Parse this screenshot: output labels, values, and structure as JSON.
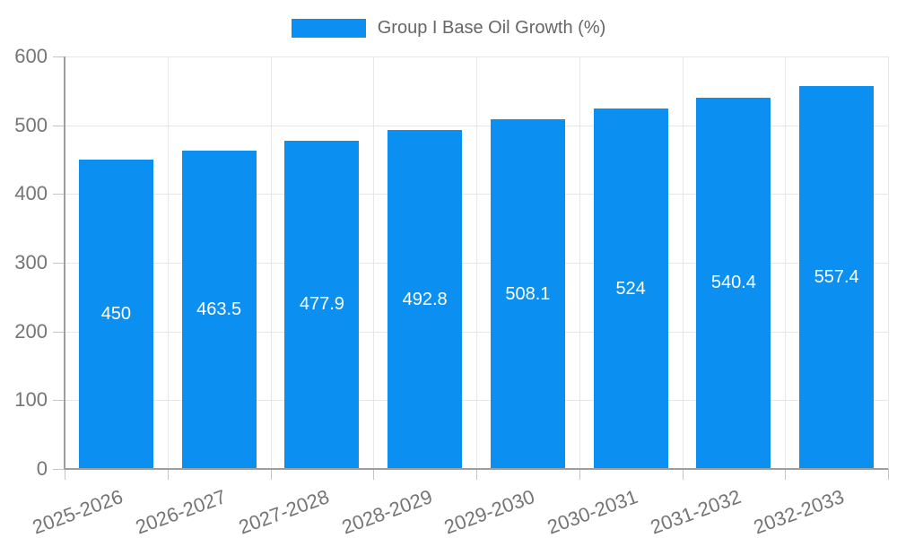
{
  "chart_data": {
    "type": "bar",
    "title": "",
    "categories": [
      "2025-2026",
      "2026-2027",
      "2027-2028",
      "2028-2029",
      "2029-2030",
      "2030-2031",
      "2031-2032",
      "2032-2033"
    ],
    "series": [
      {
        "name": "Group I Base Oil Growth (%)",
        "values": [
          450,
          463.5,
          477.9,
          492.8,
          508.1,
          524,
          540.4,
          557.4
        ]
      }
    ],
    "value_labels": [
      "450",
      "463.5",
      "477.9",
      "492.8",
      "508.1",
      "524",
      "540.4",
      "557.4"
    ],
    "xlabel": "",
    "ylabel": "",
    "ylim": [
      0,
      600
    ],
    "yticks": [
      0,
      100,
      200,
      300,
      400,
      500,
      600
    ],
    "grid": true,
    "legend": {
      "position": "top",
      "label": "Group I Base Oil Growth (%)"
    },
    "x_label_rotation_deg": -20
  },
  "colors": {
    "bar": "#0b90f2",
    "value_label": "#ffffff",
    "axis_text": "#757575",
    "legend_text": "#666666",
    "gridline": "#e6e6e6",
    "axis_line": "#9e9e9e",
    "tick": "#c4c4c4",
    "background": "#ffffff"
  }
}
